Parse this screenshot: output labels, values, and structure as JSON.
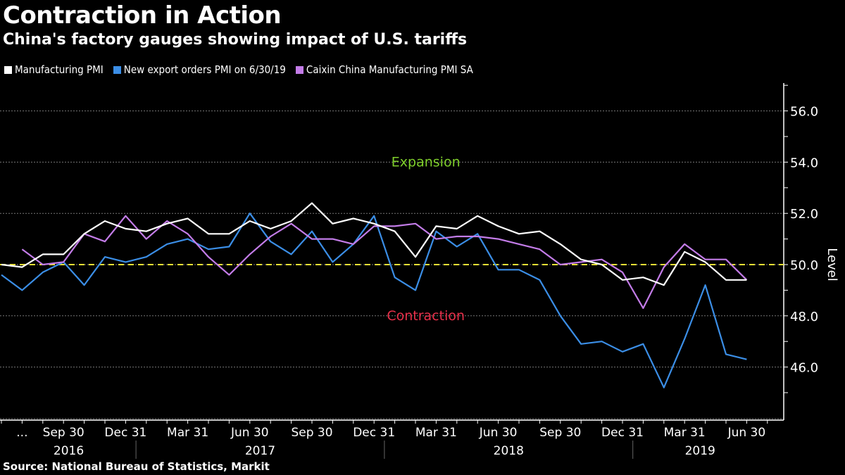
{
  "chart_data": {
    "type": "line",
    "title": "Contraction in Action",
    "subtitle": "China's factory gauges showing impact of U.S. tariffs",
    "source": "Source: National Bureau of Statistics, Markit",
    "ylabel": "Level",
    "ylim": [
      44,
      57
    ],
    "yticks": [
      46.0,
      48.0,
      50.0,
      52.0,
      54.0,
      56.0
    ],
    "ytick_labels": [
      "46.0",
      "48.0",
      "50.0",
      "52.0",
      "54.0",
      "56.0"
    ],
    "grid": true,
    "legend_position": "top-left",
    "x": [
      "2016-06",
      "2016-07",
      "2016-08",
      "2016-09",
      "2016-10",
      "2016-11",
      "2016-12",
      "2017-01",
      "2017-02",
      "2017-03",
      "2017-04",
      "2017-05",
      "2017-06",
      "2017-07",
      "2017-08",
      "2017-09",
      "2017-10",
      "2017-11",
      "2017-12",
      "2018-01",
      "2018-02",
      "2018-03",
      "2018-04",
      "2018-05",
      "2018-06",
      "2018-07",
      "2018-08",
      "2018-09",
      "2018-10",
      "2018-11",
      "2018-12",
      "2019-01",
      "2019-02",
      "2019-03",
      "2019-04",
      "2019-05",
      "2019-06"
    ],
    "xtick_labels": [
      {
        "index": 1,
        "label": "..."
      },
      {
        "index": 3,
        "label": "Sep 30"
      },
      {
        "index": 6,
        "label": "Dec 31"
      },
      {
        "index": 9,
        "label": "Mar 31"
      },
      {
        "index": 12,
        "label": "Jun 30"
      },
      {
        "index": 15,
        "label": "Sep 30"
      },
      {
        "index": 18,
        "label": "Dec 31"
      },
      {
        "index": 21,
        "label": "Mar 31"
      },
      {
        "index": 24,
        "label": "Jun 30"
      },
      {
        "index": 27,
        "label": "Sep 30"
      },
      {
        "index": 30,
        "label": "Dec 31"
      },
      {
        "index": 33,
        "label": "Mar 31"
      },
      {
        "index": 36,
        "label": "Jun 30"
      }
    ],
    "year_labels": [
      {
        "label": "2016",
        "from": 0,
        "to": 6.5
      },
      {
        "label": "2017",
        "from": 6.5,
        "to": 18.5
      },
      {
        "label": "2018",
        "from": 18.5,
        "to": 30.5
      },
      {
        "label": "2019",
        "from": 30.5,
        "to": 37
      }
    ],
    "series": [
      {
        "name": "Manufacturing PMI",
        "color": "#ffffff",
        "start_index": 0,
        "values": [
          50.0,
          49.9,
          50.4,
          50.4,
          51.2,
          51.7,
          51.4,
          51.3,
          51.6,
          51.8,
          51.2,
          51.2,
          51.7,
          51.4,
          51.7,
          52.4,
          51.6,
          51.8,
          51.6,
          51.3,
          50.3,
          51.5,
          51.4,
          51.9,
          51.5,
          51.2,
          51.3,
          50.8,
          50.2,
          50.0,
          49.4,
          49.5,
          49.2,
          50.5,
          50.1,
          49.4,
          49.4
        ]
      },
      {
        "name": "New export orders PMI on 6/30/19",
        "color": "#3b8ee6",
        "start_index": 0,
        "values": [
          49.6,
          49.0,
          49.7,
          50.1,
          49.2,
          50.3,
          50.1,
          50.3,
          50.8,
          51.0,
          50.6,
          50.7,
          52.0,
          50.9,
          50.4,
          51.3,
          50.1,
          50.8,
          51.9,
          49.5,
          49.0,
          51.3,
          50.7,
          51.2,
          49.8,
          49.8,
          49.4,
          48.0,
          46.9,
          47.0,
          46.6,
          46.9,
          45.2,
          47.1,
          49.2,
          46.5,
          46.3
        ]
      },
      {
        "name": "Caixin China Manufacturing PMI SA",
        "color": "#c37ce8",
        "start_index": 1,
        "values": [
          50.6,
          50.0,
          50.1,
          51.2,
          50.9,
          51.9,
          51.0,
          51.7,
          51.2,
          50.3,
          49.6,
          50.4,
          51.1,
          51.6,
          51.0,
          51.0,
          50.8,
          51.5,
          51.5,
          51.6,
          51.0,
          51.1,
          51.1,
          51.0,
          50.8,
          50.6,
          50.0,
          50.1,
          50.2,
          49.7,
          48.3,
          49.9,
          50.8,
          50.2,
          50.2,
          49.4
        ]
      }
    ],
    "reference_line": {
      "value": 50.0,
      "color": "#e8e035",
      "style": "dashed"
    },
    "annotations": [
      {
        "text": "Expansion",
        "color": "#7fcf2b",
        "x_index": 20.5,
        "y": 54.0
      },
      {
        "text": "Contraction",
        "color": "#e8304a",
        "x_index": 20.5,
        "y": 48.0
      }
    ]
  }
}
